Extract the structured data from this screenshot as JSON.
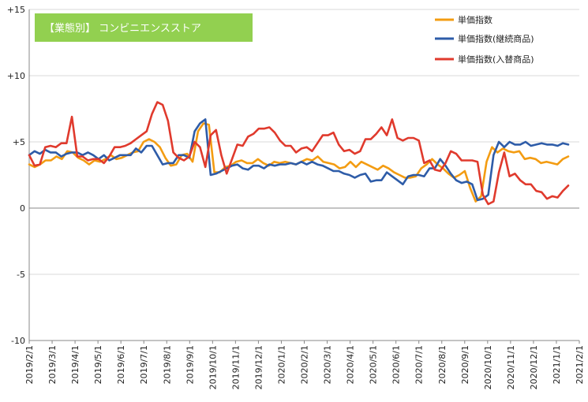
{
  "chart_data": {
    "type": "line",
    "title": "【業態別】 コンビニエンスストア",
    "xlabel": "",
    "ylabel": "",
    "ylim": [
      -10,
      15
    ],
    "grid": "horizontal",
    "legend_position": "top-right",
    "y_ticks": [
      "+15",
      "+10",
      "+5",
      "0",
      "-5",
      "-10"
    ],
    "x_tick_labels": [
      "2019/2/1",
      "2019/3/1",
      "2019/4/1",
      "2019/5/1",
      "2019/6/1",
      "2019/7/1",
      "2019/8/1",
      "2019/9/1",
      "2019/10/1",
      "2019/11/1",
      "2019/12/1",
      "2020/1/1",
      "2020/2/1",
      "2020/3/1",
      "2020/4/1",
      "2020/5/1",
      "2020/6/1",
      "2020/7/1",
      "2020/8/1",
      "2020/9/1",
      "2020/10/1",
      "2020/11/1",
      "2020/12/1",
      "2021/1/1",
      "2021/2/1"
    ],
    "series": [
      {
        "name": "単価指数",
        "color": "#F39C12",
        "values": [
          3.3,
          3.1,
          3.3,
          3.6,
          3.6,
          3.9,
          3.7,
          4.3,
          4.2,
          3.8,
          3.6,
          3.3,
          3.6,
          3.5,
          3.7,
          4.0,
          3.7,
          3.8,
          4.0,
          4.2,
          4.3,
          5.0,
          5.2,
          5.0,
          4.6,
          3.8,
          3.2,
          3.3,
          4.0,
          4.1,
          3.5,
          5.8,
          6.4,
          6.3,
          2.7,
          2.7,
          3.1,
          3.2,
          3.5,
          3.6,
          3.4,
          3.4,
          3.7,
          3.4,
          3.2,
          3.5,
          3.4,
          3.5,
          3.4,
          3.3,
          3.5,
          3.7,
          3.6,
          3.9,
          3.5,
          3.4,
          3.3,
          3.0,
          3.1,
          3.5,
          3.1,
          3.5,
          3.3,
          3.1,
          2.9,
          3.2,
          3.0,
          2.7,
          2.5,
          2.3,
          2.3,
          2.4,
          3.0,
          3.3,
          3.7,
          3.3,
          3.0,
          2.6,
          2.3,
          2.5,
          2.8,
          1.5,
          0.5,
          0.9,
          3.5,
          4.6,
          4.2,
          4.5,
          4.3,
          4.2,
          4.3,
          3.7,
          3.8,
          3.7,
          3.4,
          3.5,
          3.4,
          3.3,
          3.7,
          3.9
        ]
      },
      {
        "name": "単価指数(継続商品)",
        "color": "#2E5CA8",
        "values": [
          4.0,
          4.3,
          4.1,
          4.4,
          4.2,
          4.2,
          3.9,
          4.1,
          4.2,
          4.2,
          4.0,
          4.2,
          4.0,
          3.7,
          4.0,
          3.6,
          3.8,
          4.0,
          4.0,
          4.0,
          4.5,
          4.2,
          4.7,
          4.7,
          4.0,
          3.3,
          3.4,
          3.4,
          4.0,
          4.0,
          3.8,
          5.8,
          6.4,
          6.7,
          2.5,
          2.6,
          2.8,
          3.0,
          3.2,
          3.3,
          3.0,
          2.9,
          3.2,
          3.2,
          3.0,
          3.3,
          3.2,
          3.3,
          3.3,
          3.4,
          3.3,
          3.5,
          3.3,
          3.5,
          3.3,
          3.2,
          3.0,
          2.8,
          2.8,
          2.6,
          2.5,
          2.3,
          2.5,
          2.6,
          2.0,
          2.1,
          2.1,
          2.7,
          2.4,
          2.1,
          1.8,
          2.4,
          2.5,
          2.5,
          2.4,
          3.0,
          3.0,
          3.7,
          3.2,
          2.6,
          2.1,
          1.9,
          2.0,
          1.8,
          0.6,
          0.7,
          1.0,
          4.0,
          5.0,
          4.6,
          5.0,
          4.8,
          4.8,
          5.0,
          4.7,
          4.8,
          4.9,
          4.8,
          4.8,
          4.7,
          4.9,
          4.8
        ]
      },
      {
        "name": "単価指数(入替商品)",
        "color": "#E03A2D",
        "values": [
          4.0,
          3.2,
          3.3,
          4.6,
          4.7,
          4.6,
          4.9,
          4.9,
          6.9,
          3.9,
          3.9,
          3.6,
          3.7,
          3.7,
          3.4,
          3.9,
          4.6,
          4.6,
          4.7,
          4.9,
          5.2,
          5.5,
          5.8,
          7.1,
          8.0,
          7.8,
          6.6,
          4.2,
          3.8,
          3.6,
          3.9,
          5.0,
          4.6,
          3.1,
          5.5,
          5.9,
          4.0,
          2.6,
          3.7,
          4.8,
          4.7,
          5.4,
          5.6,
          6.0,
          6.0,
          6.1,
          5.7,
          5.1,
          4.7,
          4.7,
          4.2,
          4.5,
          4.6,
          4.3,
          4.9,
          5.5,
          5.5,
          5.7,
          4.8,
          4.3,
          4.4,
          4.1,
          4.3,
          5.2,
          5.2,
          5.6,
          6.1,
          5.5,
          6.7,
          5.3,
          5.1,
          5.3,
          5.3,
          5.1,
          3.4,
          3.6,
          2.9,
          2.8,
          3.4,
          4.3,
          4.1,
          3.6,
          3.6,
          3.6,
          3.5,
          1.0,
          0.3,
          0.5,
          2.7,
          4.2,
          2.4,
          2.6,
          2.1,
          1.8,
          1.8,
          1.3,
          1.2,
          0.7,
          0.9,
          0.8,
          1.3,
          1.7
        ]
      }
    ]
  }
}
